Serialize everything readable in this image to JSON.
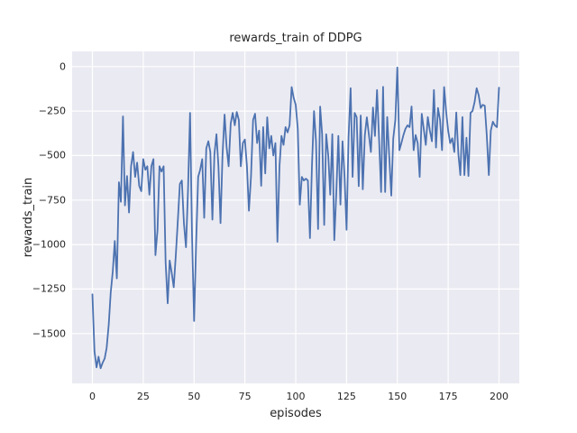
{
  "figure": {
    "title": "rewards_train of DDPG",
    "xlabel": "episodes",
    "ylabel": "rewards_train"
  },
  "colors": {
    "figure_background": "#ffffff",
    "axes_background": "#eaeaf2",
    "grid": "#ffffff",
    "line": "#4c72b0",
    "text": "#262626"
  },
  "chart_data": {
    "type": "line",
    "title": "rewards_train of DDPG",
    "xlabel": "episodes",
    "ylabel": "rewards_train",
    "xlim": [
      -10,
      210
    ],
    "ylim": [
      -1780,
      85
    ],
    "x_ticks": [
      0,
      25,
      50,
      75,
      100,
      125,
      150,
      175,
      200
    ],
    "x_tick_labels": [
      "0",
      "25",
      "50",
      "75",
      "100",
      "125",
      "150",
      "175",
      "200"
    ],
    "y_ticks": [
      0,
      -250,
      -500,
      -750,
      -1000,
      -1250,
      -1500
    ],
    "y_tick_labels": [
      "0",
      "−250",
      "−500",
      "−750",
      "−1000",
      "−1250",
      "−1500"
    ],
    "grid": true,
    "grid_color": "#ffffff",
    "background_color": "#eaeaf2",
    "legend": "none",
    "series": [
      {
        "name": "rewards_train",
        "color": "#4c72b0",
        "x_start": 0,
        "x_step": 1,
        "values": [
          -1280,
          -1600,
          -1690,
          -1630,
          -1695,
          -1665,
          -1640,
          -1580,
          -1450,
          -1270,
          -1150,
          -980,
          -1190,
          -650,
          -760,
          -280,
          -780,
          -615,
          -820,
          -560,
          -480,
          -620,
          -540,
          -670,
          -700,
          -520,
          -580,
          -560,
          -720,
          -560,
          -520,
          -1060,
          -920,
          -560,
          -590,
          -560,
          -1100,
          -1330,
          -1090,
          -1160,
          -1240,
          -1060,
          -870,
          -660,
          -640,
          -880,
          -1015,
          -700,
          -260,
          -950,
          -1430,
          -1000,
          -620,
          -580,
          -520,
          -850,
          -460,
          -420,
          -480,
          -860,
          -495,
          -380,
          -560,
          -880,
          -500,
          -270,
          -450,
          -560,
          -320,
          -260,
          -330,
          -255,
          -300,
          -560,
          -430,
          -410,
          -560,
          -810,
          -620,
          -300,
          -265,
          -430,
          -360,
          -670,
          -340,
          -600,
          -285,
          -460,
          -390,
          -500,
          -430,
          -985,
          -560,
          -390,
          -440,
          -340,
          -370,
          -330,
          -115,
          -175,
          -215,
          -350,
          -776,
          -620,
          -640,
          -630,
          -640,
          -964,
          -560,
          -250,
          -420,
          -913,
          -225,
          -380,
          -890,
          -380,
          -500,
          -720,
          -380,
          -975,
          -700,
          -390,
          -776,
          -420,
          -610,
          -917,
          -400,
          -122,
          -620,
          -260,
          -285,
          -672,
          -275,
          -690,
          -385,
          -285,
          -385,
          -480,
          -230,
          -390,
          -132,
          -400,
          -705,
          -114,
          -705,
          -284,
          -500,
          -725,
          -404,
          -300,
          -5,
          -470,
          -430,
          -385,
          -350,
          -330,
          -340,
          -224,
          -470,
          -385,
          -430,
          -620,
          -265,
          -350,
          -440,
          -284,
          -360,
          -420,
          -132,
          -455,
          -233,
          -300,
          -470,
          -115,
          -250,
          -360,
          -430,
          -403,
          -480,
          -258,
          -490,
          -610,
          -284,
          -610,
          -400,
          -615,
          -260,
          -250,
          -200,
          -122,
          -160,
          -233,
          -215,
          -220,
          -385,
          -610,
          -360,
          -310,
          -330,
          -340,
          -118
        ]
      }
    ]
  }
}
